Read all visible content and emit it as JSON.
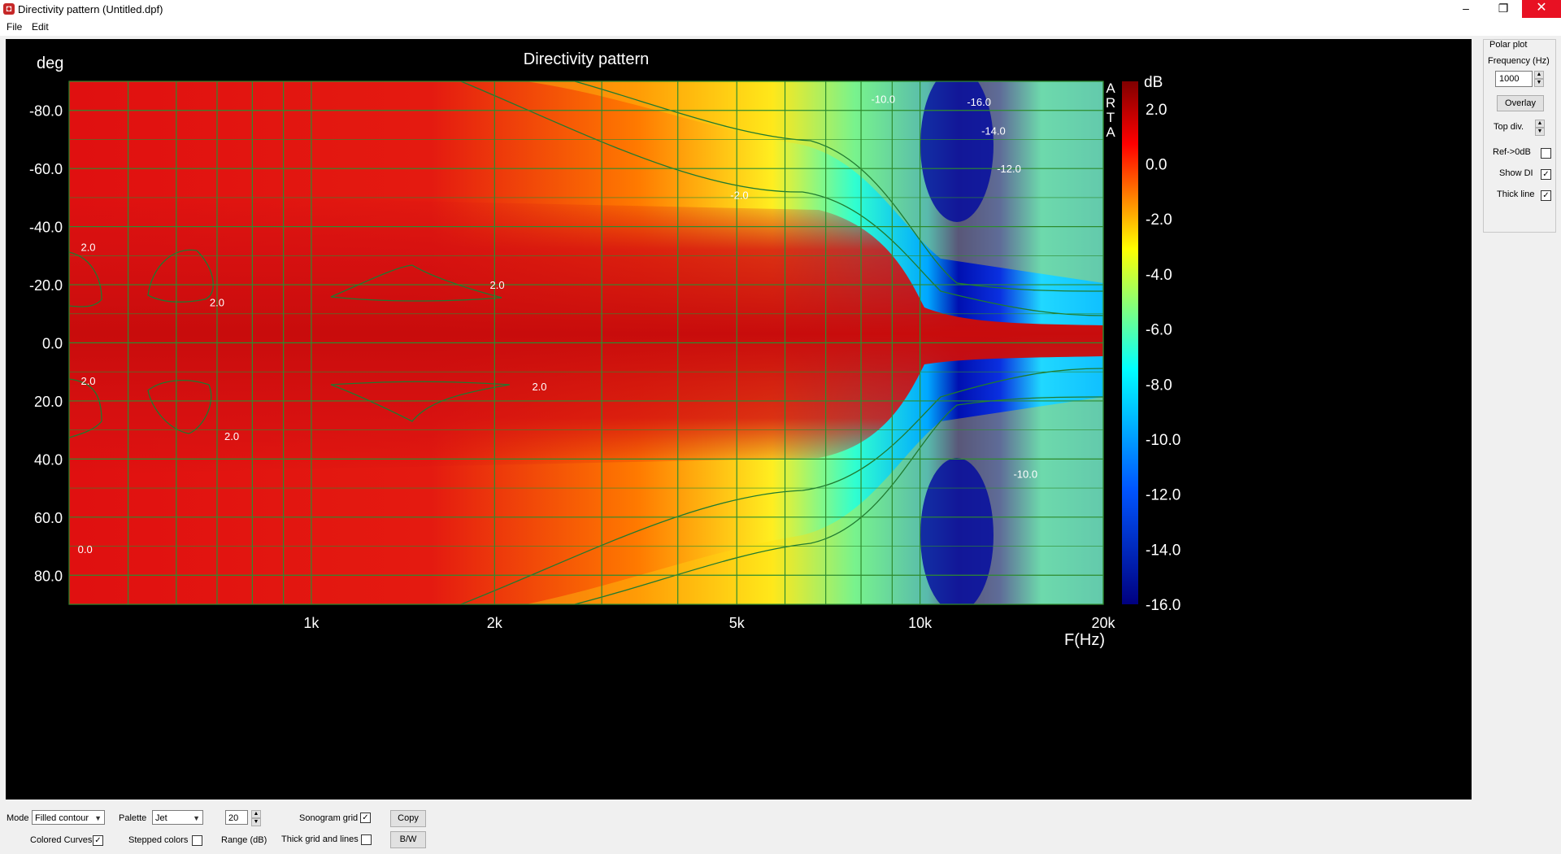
{
  "window": {
    "title": "Directivity pattern (Untitled.dpf)",
    "minimize": "–",
    "maximize": "❐",
    "close": "✕"
  },
  "menu": [
    "File",
    "Edit"
  ],
  "plot": {
    "title": "Directivity pattern",
    "y_unit": "deg",
    "x_unit": "F(Hz)",
    "colorbar_unit": "dB",
    "brand": [
      "A",
      "R",
      "T",
      "A"
    ]
  },
  "chart_data": {
    "type": "heatmap",
    "title": "Directivity pattern",
    "xlabel": "F(Hz)",
    "ylabel": "deg",
    "x_scale": "log",
    "xlim": [
      400,
      20000
    ],
    "ylim": [
      -90,
      90
    ],
    "x_ticks": [
      {
        "value": 1000,
        "label": "1k"
      },
      {
        "value": 2000,
        "label": "2k"
      },
      {
        "value": 5000,
        "label": "5k"
      },
      {
        "value": 10000,
        "label": "10k"
      },
      {
        "value": 20000,
        "label": "20k"
      }
    ],
    "y_ticks": [
      {
        "value": -80,
        "label": "-80.0"
      },
      {
        "value": -60,
        "label": "-60.0"
      },
      {
        "value": -40,
        "label": "-40.0"
      },
      {
        "value": -20,
        "label": "-20.0"
      },
      {
        "value": 0,
        "label": "0.0"
      },
      {
        "value": 20,
        "label": "20.0"
      },
      {
        "value": 40,
        "label": "40.0"
      },
      {
        "value": 60,
        "label": "60.0"
      },
      {
        "value": 80,
        "label": "80.0"
      }
    ],
    "colorbar": {
      "range": [
        -16,
        3
      ],
      "ticks": [
        "2.0",
        "0.0",
        "-2.0",
        "-4.0",
        "-6.0",
        "-8.0",
        "-10.0",
        "-12.0",
        "-14.0",
        "-16.0"
      ],
      "palette": "Jet"
    },
    "contour_labels": [
      {
        "f": 430,
        "deg": -33,
        "text": "2.0"
      },
      {
        "f": 700,
        "deg": -14,
        "text": "2.0"
      },
      {
        "f": 2020,
        "deg": -20,
        "text": "2.0"
      },
      {
        "f": 430,
        "deg": 13,
        "text": "2.0"
      },
      {
        "f": 740,
        "deg": 32,
        "text": "2.0"
      },
      {
        "f": 2370,
        "deg": 15,
        "text": "2.0"
      },
      {
        "f": 425,
        "deg": 71,
        "text": "0.0"
      },
      {
        "f": 5050,
        "deg": -51,
        "text": "-2.0"
      },
      {
        "f": 12500,
        "deg": -83,
        "text": "-16.0"
      },
      {
        "f": 13200,
        "deg": -73,
        "text": "-14.0"
      },
      {
        "f": 14000,
        "deg": -60,
        "text": "-12.0"
      },
      {
        "f": 14900,
        "deg": 45,
        "text": "-10.0"
      },
      {
        "f": 8700,
        "deg": -84,
        "text": "-10.0"
      }
    ]
  },
  "side_panel": {
    "group": "Polar plot",
    "freq_label": "Frequency (Hz)",
    "freq_value": "1000",
    "overlay_button": "Overlay",
    "topdiv_label": "Top div.",
    "ref_label": "Ref->0dB",
    "ref_checked": "",
    "showdi_label": "Show DI",
    "showdi_checked": "✓",
    "thick_label": "Thick line",
    "thick_checked": "✓"
  },
  "bottom": {
    "mode_label": "Mode",
    "mode_value": "Filled contour",
    "palette_label": "Palette",
    "palette_value": "Jet",
    "range_value": "20",
    "range_label": "Range (dB)",
    "colored_curves_label": "Colored Curves",
    "colored_curves_checked": "✓",
    "stepped_colors_label": "Stepped colors",
    "stepped_colors_checked": "",
    "sonogram_grid_label": "Sonogram grid",
    "sonogram_grid_checked": "✓",
    "thick_grid_label": "Thick grid and  lines",
    "thick_grid_checked": "",
    "copy_button": "Copy",
    "bw_button": "B/W"
  }
}
